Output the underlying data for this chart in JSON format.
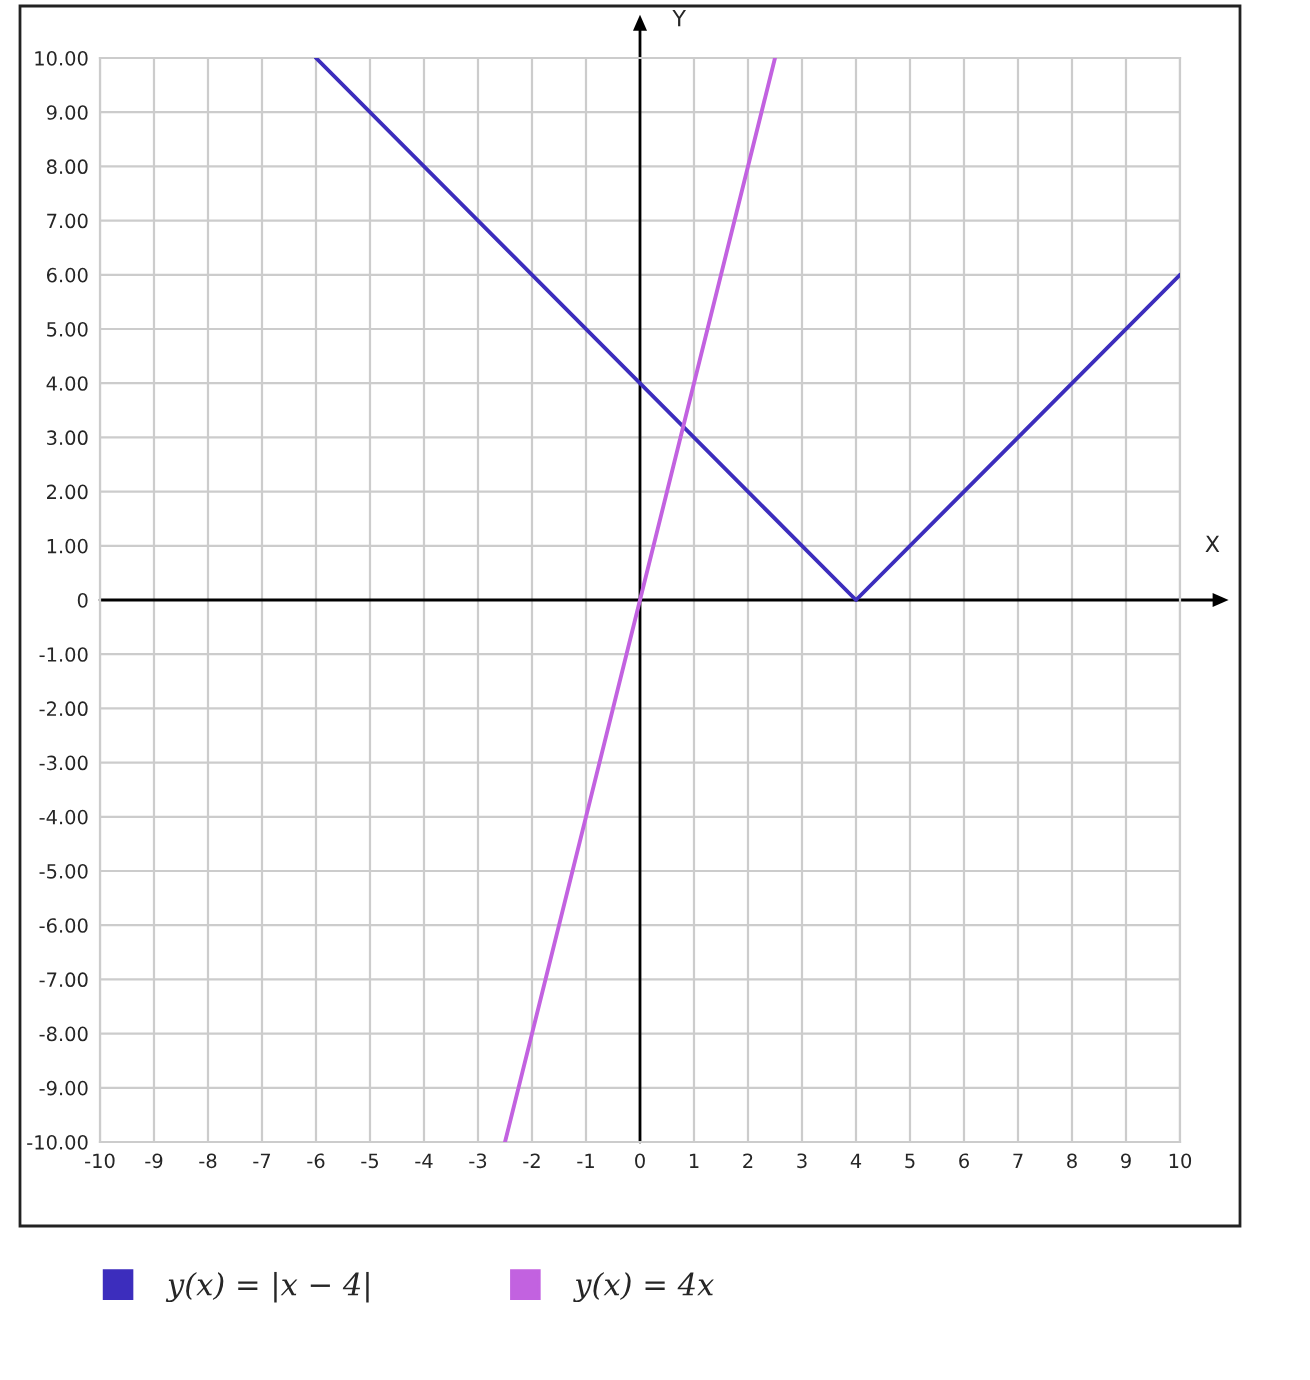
{
  "chart_data": {
    "type": "line",
    "xlabel": "X",
    "ylabel": "Y",
    "series": [
      {
        "name": "y(x) = |x − 4|",
        "color": "#3c2dbd",
        "x": [
          -6,
          4,
          10
        ],
        "values": [
          10,
          0,
          6
        ]
      },
      {
        "name": "y(x) = 4x",
        "color": "#c262e0",
        "x": [
          -2.5,
          2.5
        ],
        "values": [
          -10,
          10
        ]
      }
    ],
    "xlim": [
      -10,
      10
    ],
    "ylim": [
      -10,
      10
    ],
    "xticks": [
      -10,
      -9,
      -8,
      -7,
      -6,
      -5,
      -4,
      -3,
      -2,
      -1,
      0,
      1,
      2,
      3,
      4,
      5,
      6,
      7,
      8,
      9,
      10
    ],
    "yticks": [
      {
        "value": -10,
        "label": "-10.00"
      },
      {
        "value": -9,
        "label": "-9.00"
      },
      {
        "value": -8,
        "label": "-8.00"
      },
      {
        "value": -7,
        "label": "-7.00"
      },
      {
        "value": -6,
        "label": "-6.00"
      },
      {
        "value": -5,
        "label": "-5.00"
      },
      {
        "value": -4,
        "label": "-4.00"
      },
      {
        "value": -3,
        "label": "-3.00"
      },
      {
        "value": -2,
        "label": "-2.00"
      },
      {
        "value": -1,
        "label": "-1.00"
      },
      0,
      {
        "value": 1,
        "label": "1.00"
      },
      {
        "value": 2,
        "label": "2.00"
      },
      {
        "value": 3,
        "label": "3.00"
      },
      {
        "value": 4,
        "label": "4.00"
      },
      {
        "value": 5,
        "label": "5.00"
      },
      {
        "value": 6,
        "label": "6.00"
      },
      {
        "value": 7,
        "label": "7.00"
      },
      {
        "value": 8,
        "label": "8.00"
      },
      {
        "value": 9,
        "label": "9.00"
      },
      {
        "value": 10,
        "label": "10.00"
      }
    ],
    "grid": true,
    "legend": "bottom",
    "marker": "none",
    "line_style": "solid"
  }
}
